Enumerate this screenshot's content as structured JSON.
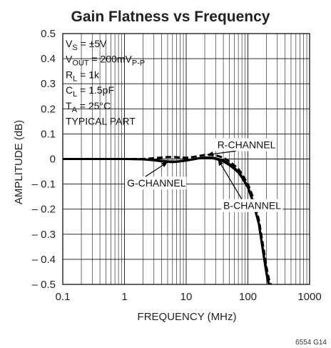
{
  "chart_data": {
    "type": "line",
    "title": "Gain Flatness vs Frequency",
    "xlabel": "FREQUENCY (MHz)",
    "ylabel": "AMPLITUDE (dB)",
    "xscale": "log",
    "xlim": [
      0.1,
      1000
    ],
    "ylim": [
      -0.5,
      0.5
    ],
    "xticks": [
      0.1,
      1,
      10,
      100,
      1000
    ],
    "xtick_labels": [
      "0.1",
      "1",
      "10",
      "100",
      "1000"
    ],
    "yticks": [
      -0.5,
      -0.4,
      -0.3,
      -0.2,
      -0.1,
      0,
      0.1,
      0.2,
      0.3,
      0.4,
      0.5
    ],
    "ytick_labels": [
      "– 0.5",
      "– 0.4",
      "– 0.3",
      "– 0.2",
      "– 0.1",
      "0",
      "0.1",
      "0.2",
      "0.3",
      "0.4",
      "0.5"
    ],
    "grid": true,
    "conditions": [
      {
        "main": "V",
        "sub": "S",
        "rest": " = ±5V"
      },
      {
        "main": "V",
        "sub": "OUT",
        "rest": " = 200mV",
        "sub2": "P-P"
      },
      {
        "main": "R",
        "sub": "L",
        "rest": " = 1k"
      },
      {
        "main": "C",
        "sub": "L",
        "rest": " = 1.5pF"
      },
      {
        "main": "T",
        "sub": "A",
        "rest": " = 25°C"
      },
      {
        "main": "TYPICAL PART",
        "sub": "",
        "rest": ""
      }
    ],
    "series": [
      {
        "name": "R-CHANNEL",
        "style": "dashed",
        "x": [
          0.1,
          0.5,
          1,
          2,
          3,
          4,
          5,
          6,
          7,
          8,
          10,
          13,
          16,
          20,
          25,
          30,
          40,
          50,
          60,
          70,
          80,
          100,
          120,
          150,
          180,
          200,
          220,
          235
        ],
        "y": [
          0.0,
          0.0,
          0.0,
          0.0,
          0.003,
          0.006,
          0.008,
          0.008,
          0.007,
          0.006,
          0.005,
          0.008,
          0.012,
          0.016,
          0.017,
          0.015,
          0.005,
          -0.01,
          -0.025,
          -0.04,
          -0.06,
          -0.1,
          -0.15,
          -0.24,
          -0.36,
          -0.43,
          -0.48,
          -0.5
        ]
      },
      {
        "name": "G-CHANNEL",
        "style": "solid",
        "x": [
          0.1,
          0.5,
          1,
          2,
          3,
          4,
          5,
          6,
          7,
          8,
          10,
          13,
          16,
          20,
          25,
          30,
          40,
          50,
          60,
          70,
          80,
          100,
          120,
          150,
          180,
          200,
          215
        ],
        "y": [
          0.0,
          0.0,
          0.0,
          -0.002,
          -0.006,
          -0.01,
          -0.012,
          -0.013,
          -0.012,
          -0.01,
          -0.007,
          -0.002,
          0.002,
          0.004,
          0.003,
          0.0,
          -0.01,
          -0.025,
          -0.04,
          -0.055,
          -0.075,
          -0.115,
          -0.17,
          -0.26,
          -0.39,
          -0.46,
          -0.5
        ]
      },
      {
        "name": "B-CHANNEL",
        "style": "solid",
        "x": [
          0.1,
          0.5,
          1,
          2,
          3,
          4,
          5,
          6,
          7,
          8,
          10,
          13,
          16,
          20,
          25,
          30,
          40,
          50,
          60,
          70,
          80,
          100,
          120,
          150,
          180,
          200,
          220
        ],
        "y": [
          0.0,
          0.0,
          0.0,
          -0.001,
          -0.004,
          -0.007,
          -0.009,
          -0.01,
          -0.01,
          -0.008,
          -0.005,
          -0.001,
          0.003,
          0.006,
          0.006,
          0.003,
          -0.006,
          -0.02,
          -0.035,
          -0.05,
          -0.07,
          -0.11,
          -0.165,
          -0.255,
          -0.38,
          -0.45,
          -0.5
        ]
      }
    ],
    "annotations": [
      {
        "text": "R-CHANNEL",
        "x": 32,
        "y": 0.043,
        "arrow_to": [
          22,
          0.017
        ]
      },
      {
        "text": "G-CHANNEL",
        "x": 1.1,
        "y": -0.11,
        "arrow_to": [
          5,
          -0.012
        ]
      },
      {
        "text": "B-CHANNEL",
        "x": 40,
        "y": -0.2,
        "arrow_to": [
          33,
          -0.003
        ]
      }
    ],
    "figure_id": "6554 G14"
  }
}
